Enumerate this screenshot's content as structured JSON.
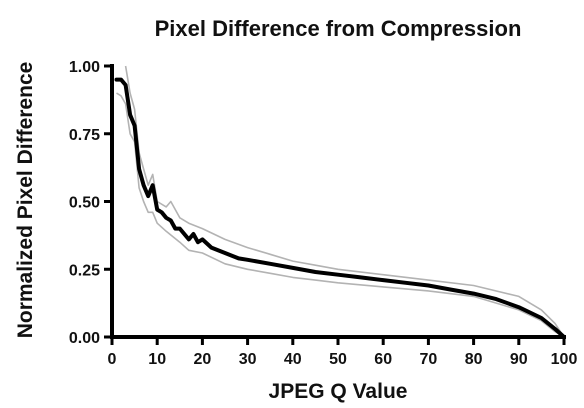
{
  "chart_data": {
    "type": "line",
    "title": "Pixel Difference from Compression",
    "xlabel": "JPEG Q Value",
    "ylabel": "Normalized Pixel Difference",
    "xlim": [
      0,
      100
    ],
    "ylim": [
      0,
      1
    ],
    "xticks": [
      0,
      10,
      20,
      30,
      40,
      50,
      60,
      70,
      80,
      90,
      100
    ],
    "xtick_labels": [
      "0",
      "10",
      "20",
      "30",
      "40",
      "50",
      "60",
      "70",
      "80",
      "90",
      "100"
    ],
    "yticks": [
      0,
      0.25,
      0.5,
      0.75,
      1
    ],
    "ytick_labels": [
      "0.00",
      "0.25",
      "0.50",
      "0.75",
      "1.00"
    ],
    "grid": false,
    "series": [
      {
        "role": "mean",
        "color": "#000000",
        "x": [
          1,
          2,
          3,
          4,
          5,
          6,
          7,
          8,
          9,
          10,
          11,
          12,
          13,
          14,
          15,
          17,
          18,
          19,
          20,
          22,
          25,
          28,
          30,
          35,
          40,
          45,
          50,
          55,
          60,
          65,
          70,
          75,
          80,
          85,
          90,
          95,
          98,
          100
        ],
        "y": [
          0.95,
          0.95,
          0.93,
          0.82,
          0.78,
          0.62,
          0.56,
          0.52,
          0.56,
          0.47,
          0.46,
          0.44,
          0.43,
          0.4,
          0.4,
          0.36,
          0.38,
          0.35,
          0.36,
          0.33,
          0.31,
          0.29,
          0.285,
          0.27,
          0.255,
          0.24,
          0.23,
          0.22,
          0.21,
          0.2,
          0.19,
          0.175,
          0.16,
          0.14,
          0.11,
          0.07,
          0.03,
          0.0
        ]
      },
      {
        "role": "upper-bound",
        "color": "#b3b3b3",
        "x": [
          3,
          4,
          5,
          6,
          7,
          8,
          9,
          10,
          12,
          13,
          15,
          17,
          20,
          25,
          30,
          35,
          40,
          45,
          50,
          60,
          70,
          80,
          90,
          95,
          98,
          100
        ],
        "y": [
          1.0,
          0.9,
          0.84,
          0.68,
          0.62,
          0.56,
          0.6,
          0.5,
          0.48,
          0.5,
          0.44,
          0.42,
          0.4,
          0.36,
          0.33,
          0.305,
          0.28,
          0.265,
          0.25,
          0.23,
          0.21,
          0.19,
          0.15,
          0.1,
          0.05,
          0.0
        ]
      },
      {
        "role": "lower-bound",
        "color": "#b3b3b3",
        "x": [
          1,
          2,
          3,
          4,
          5,
          6,
          7,
          8,
          9,
          10,
          12,
          15,
          17,
          20,
          25,
          30,
          35,
          40,
          45,
          50,
          60,
          70,
          80,
          90,
          95,
          98,
          100
        ],
        "y": [
          0.9,
          0.89,
          0.86,
          0.75,
          0.72,
          0.55,
          0.5,
          0.46,
          0.46,
          0.42,
          0.39,
          0.35,
          0.32,
          0.31,
          0.27,
          0.25,
          0.235,
          0.22,
          0.21,
          0.2,
          0.185,
          0.17,
          0.15,
          0.1,
          0.06,
          0.02,
          0.0
        ]
      }
    ]
  }
}
